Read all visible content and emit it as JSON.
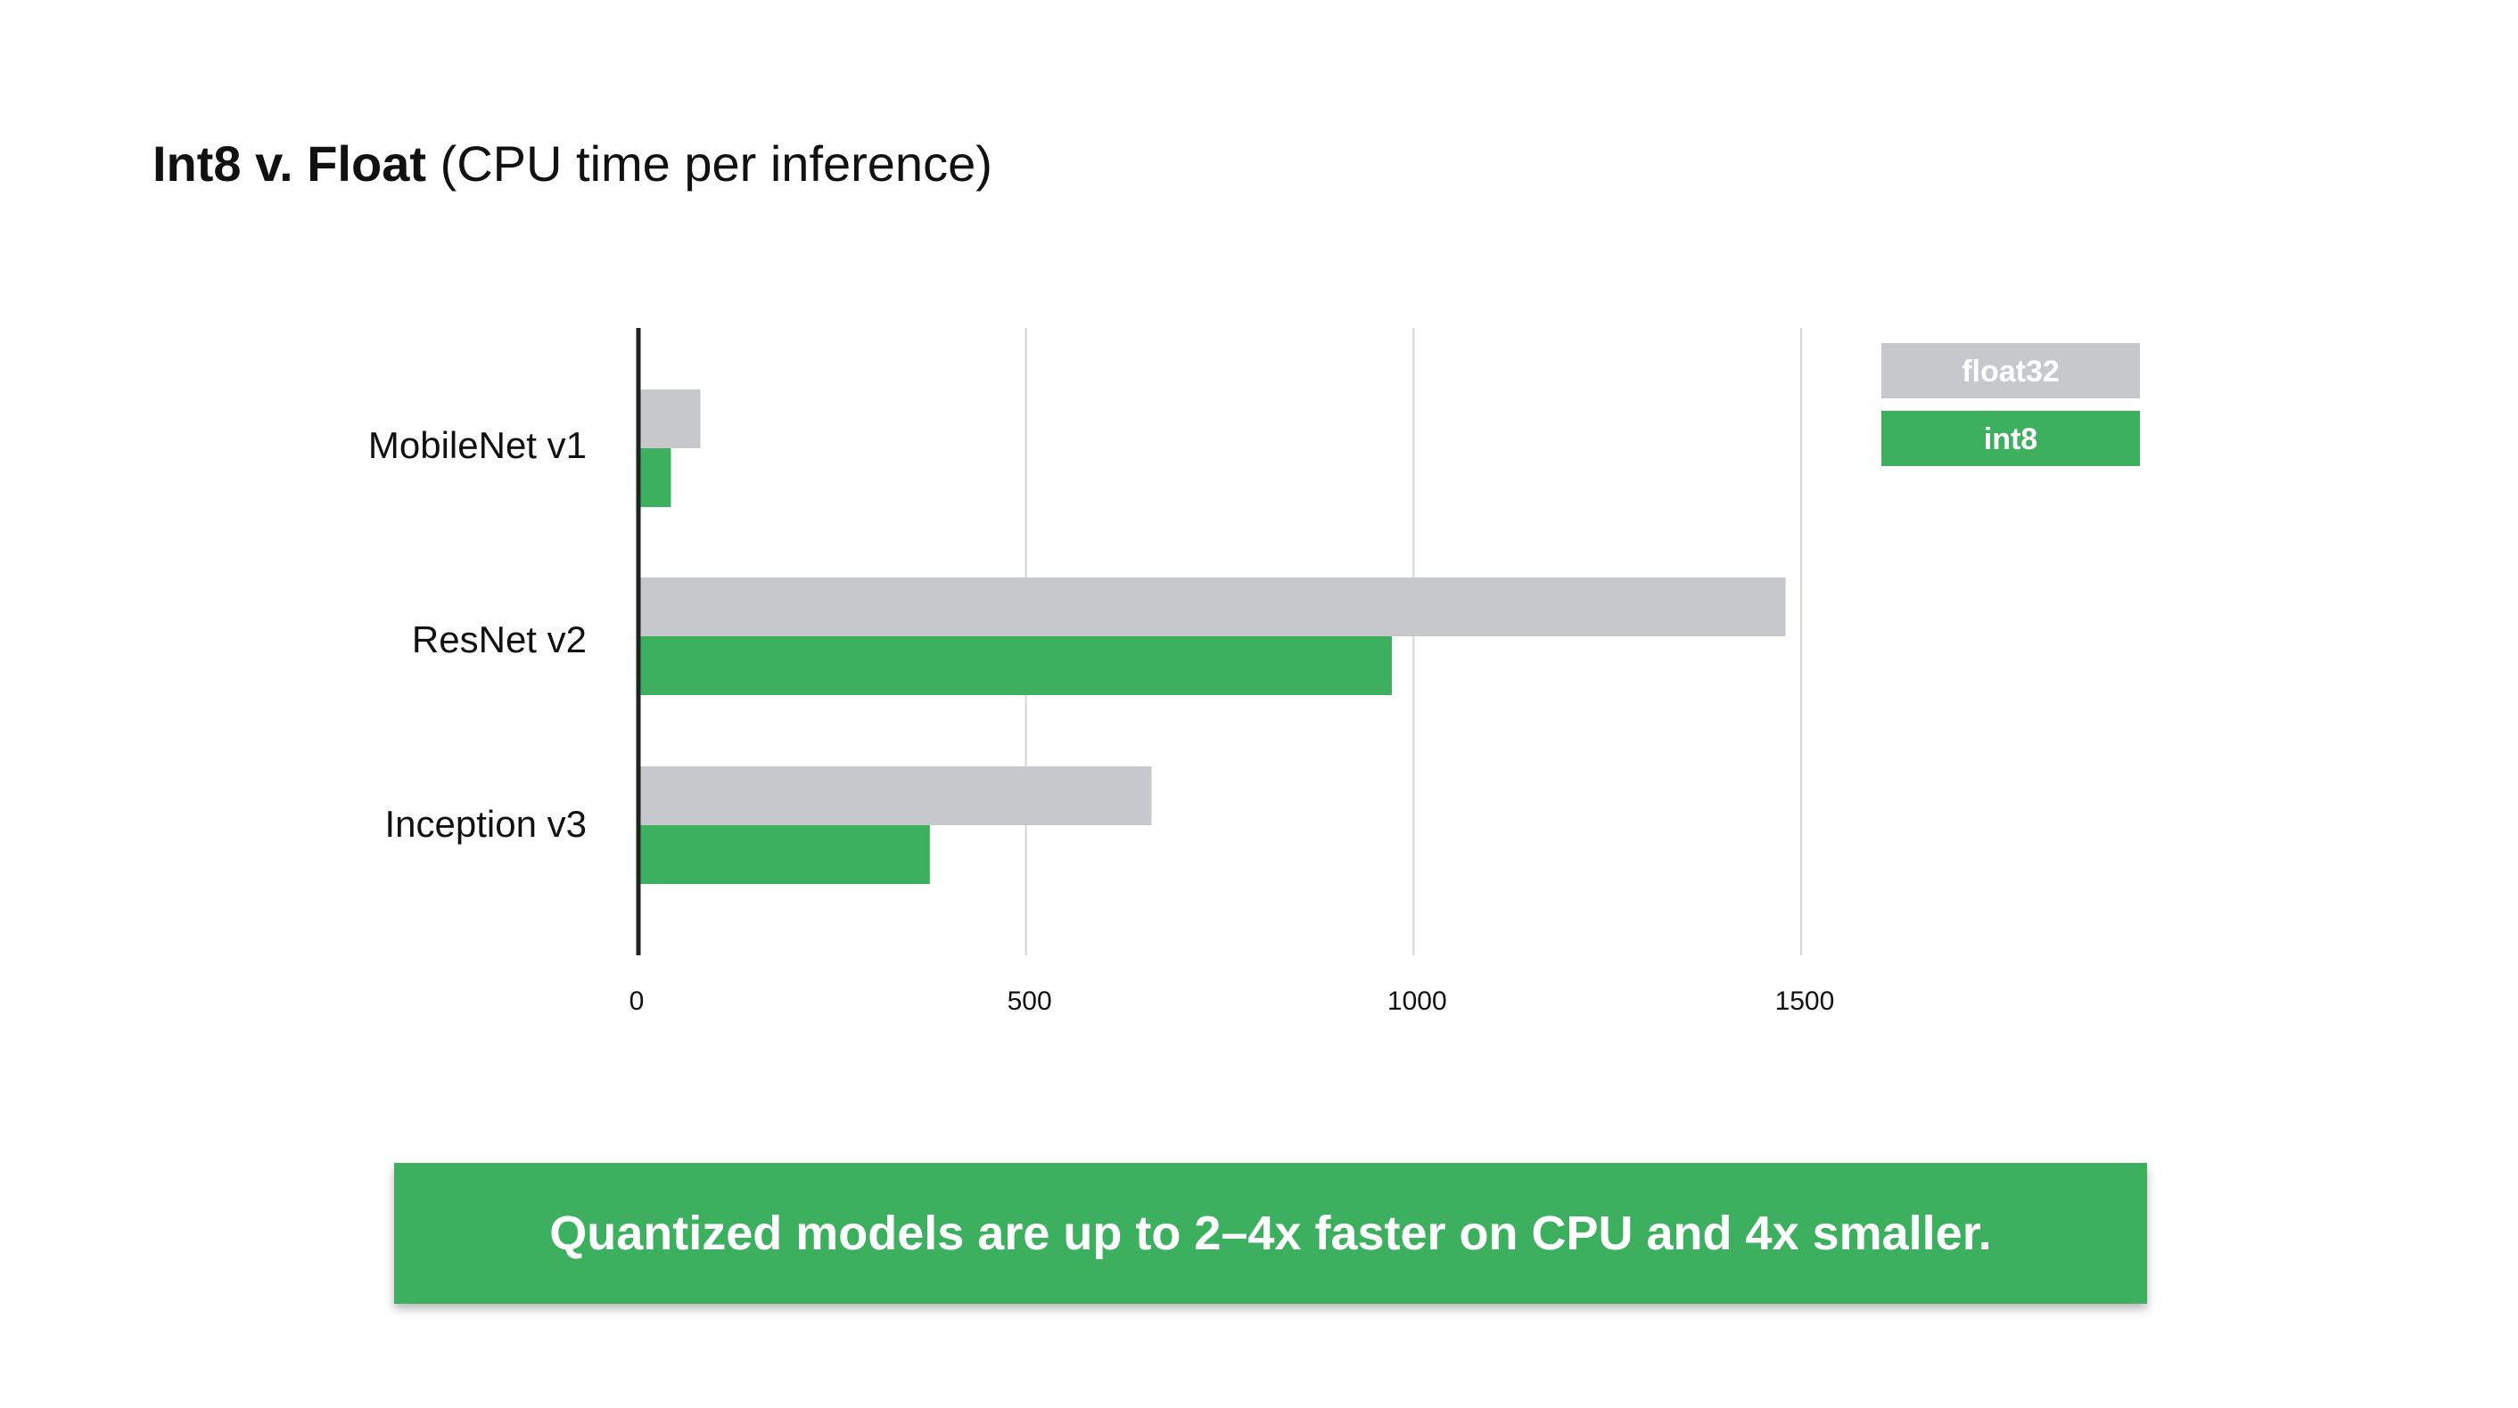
{
  "title": {
    "bold": "Int8 v. Float",
    "light": "(CPU time per inference)"
  },
  "chart_data": {
    "type": "bar",
    "orientation": "horizontal",
    "categories": [
      "MobileNet v1",
      "ResNet v2",
      "Inception v3"
    ],
    "series": [
      {
        "name": "float32",
        "color": "#c6c8cc",
        "values": [
          80,
          1480,
          662
        ]
      },
      {
        "name": "int8",
        "color": "#3db060",
        "values": [
          42,
          972,
          376
        ]
      }
    ],
    "xlim": [
      0,
      1500
    ],
    "xticks": [
      0,
      500,
      1000,
      1500
    ],
    "grid": true,
    "legend_position": "top-right"
  },
  "callout": {
    "text": "Quantized models are up to 2–4x faster on CPU and 4x smaller.",
    "color": "#3db060"
  }
}
